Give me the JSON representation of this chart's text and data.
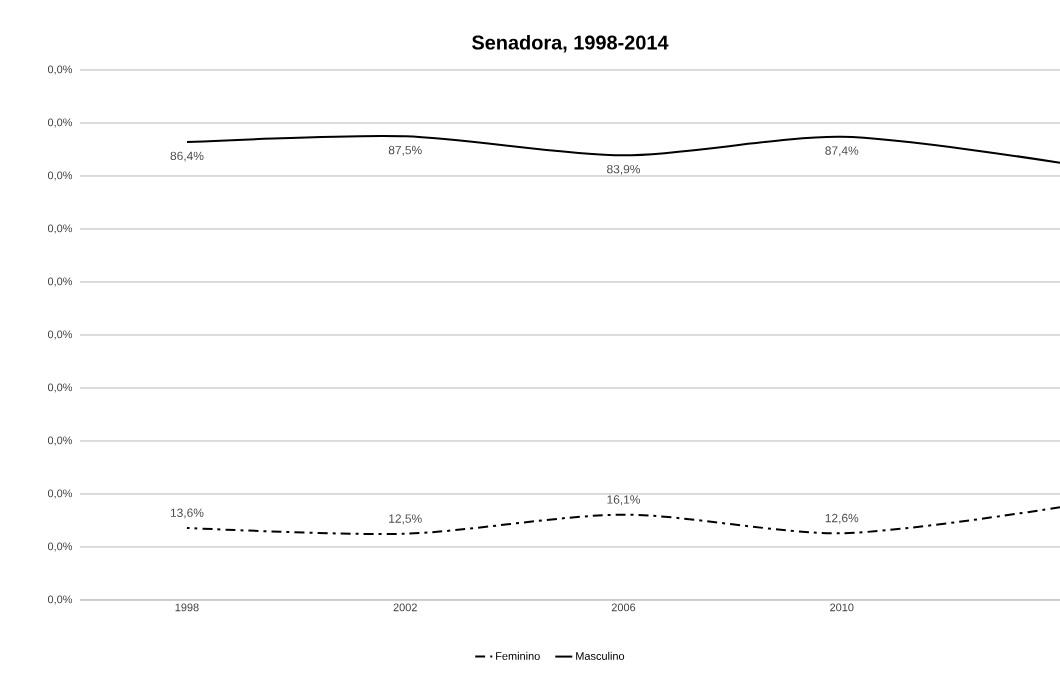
{
  "chart_data": {
    "type": "line",
    "title": "Senadora, 1998-2014",
    "categories": [
      "1998",
      "2002",
      "2006",
      "2010",
      null
    ],
    "series": [
      {
        "name": "Feminino",
        "color": "#000000",
        "line_style": "dashdot",
        "values": [
          13.6,
          12.5,
          16.1,
          12.6,
          17.5
        ],
        "value_labels": [
          "13,6%",
          "12,5%",
          "16,1%",
          "12,6%",
          null
        ]
      },
      {
        "name": "Masculino",
        "color": "#000000",
        "line_style": "solid",
        "values": [
          86.4,
          87.5,
          83.9,
          87.4,
          82.5
        ],
        "value_labels": [
          "86,4%",
          "87,5%",
          "83,9%",
          "87,4%",
          null
        ]
      }
    ],
    "annotations": [
      "0,0%",
      "0,0%",
      "0,0%",
      "0,0%",
      "0,0%",
      "0,0%",
      "0,0%",
      "0,0%",
      "0,0%",
      "0,0%",
      "0,0%"
    ],
    "grid": "y",
    "legend": "bottom",
    "marker": "none"
  }
}
